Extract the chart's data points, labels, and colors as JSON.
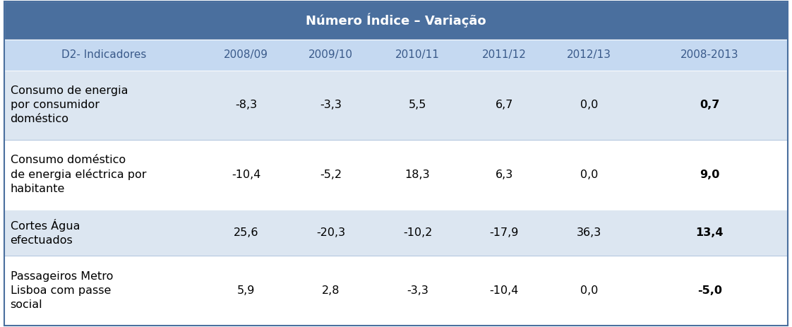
{
  "title": "Número Índice – Variação",
  "header_bg": "#4a6f9e",
  "header_text_color": "#ffffff",
  "subheader_bg": "#c5d9f1",
  "subheader_text_color": "#3a5a8a",
  "row_bg_odd": "#dce6f1",
  "row_bg_even": "#ffffff",
  "col_header": "D2- Indicadores",
  "columns": [
    "2008/09",
    "2009/10",
    "2010/11",
    "2011/12",
    "2012/13",
    "2008-2013"
  ],
  "rows": [
    {
      "label": "Consumo de energia\npor consumidor\ndoméstico",
      "values": [
        "-8,3",
        "-3,3",
        "5,5",
        "6,7",
        "0,0",
        "0,7"
      ],
      "num_lines": 3
    },
    {
      "label": "Consumo doméstico\nde energia eléctrica por\nhabitante",
      "values": [
        "-10,4",
        "-5,2",
        "18,3",
        "6,3",
        "0,0",
        "9,0"
      ],
      "num_lines": 3
    },
    {
      "label": "Cortes Água\nefectuados",
      "values": [
        "25,6",
        "-20,3",
        "-10,2",
        "-17,9",
        "36,3",
        "13,4"
      ],
      "num_lines": 2
    },
    {
      "label": "Passageiros Metro\nLisboa com passe\nsocial",
      "values": [
        "5,9",
        "2,8",
        "-3,3",
        "-10,4",
        "0,0",
        "-5,0"
      ],
      "num_lines": 3
    }
  ],
  "title_fontsize": 13,
  "header_fontsize": 11,
  "cell_fontsize": 11.5,
  "label_fontsize": 11.5
}
